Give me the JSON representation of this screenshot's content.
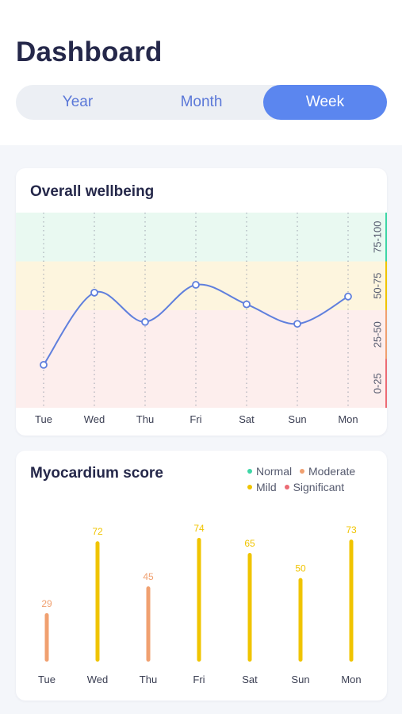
{
  "header": {
    "title": "Dashboard"
  },
  "tabs": [
    {
      "label": "Year"
    },
    {
      "label": "Month"
    },
    {
      "label": "Week",
      "active": true
    }
  ],
  "colors": {
    "accent": "#5b86ef",
    "line": "#5f7fdd",
    "normal": "#3ed6a6",
    "moderate": "#f0a070",
    "mild": "#f0c400",
    "significant": "#ec6b74"
  },
  "wellbeing": {
    "title": "Overall wellbeing",
    "chart_data": {
      "type": "line",
      "categories": [
        "Tue",
        "Wed",
        "Thu",
        "Fri",
        "Sat",
        "Sun",
        "Mon"
      ],
      "values": [
        22,
        59,
        44,
        63,
        53,
        43,
        57
      ],
      "ylim": [
        0,
        100
      ],
      "bands": [
        {
          "label": "75-100",
          "from": 75,
          "to": 100,
          "color": "#e9f9f1",
          "edge": "#3ed6a6"
        },
        {
          "label": "50-75",
          "from": 50,
          "to": 75,
          "color": "#fdf5de",
          "edge": "#f0c400"
        },
        {
          "label": "25-50",
          "from": 25,
          "to": 50,
          "color": "#fdeeed",
          "edge": "#f0a070"
        },
        {
          "label": "0-25",
          "from": 0,
          "to": 25,
          "color": "#fdeeed",
          "edge": "#ec6b74"
        }
      ]
    }
  },
  "myocardium": {
    "title": "Myocardium score",
    "legend": [
      {
        "label": "Normal",
        "color": "#3ed6a6"
      },
      {
        "label": "Moderate",
        "color": "#f0a070"
      },
      {
        "label": "Mild",
        "color": "#f0c400"
      },
      {
        "label": "Significant",
        "color": "#ec6b74"
      }
    ],
    "chart_data": {
      "type": "bar",
      "categories": [
        "Tue",
        "Wed",
        "Thu",
        "Fri",
        "Sat",
        "Sun",
        "Mon"
      ],
      "values": [
        29,
        72,
        45,
        74,
        65,
        50,
        73
      ],
      "value_labels": [
        "29",
        "72",
        "45",
        "74",
        "65",
        "50",
        "73"
      ],
      "levels": [
        "Moderate",
        "Mild",
        "Moderate",
        "Mild",
        "Mild",
        "Mild",
        "Mild"
      ],
      "ylim": [
        0,
        80
      ]
    }
  }
}
